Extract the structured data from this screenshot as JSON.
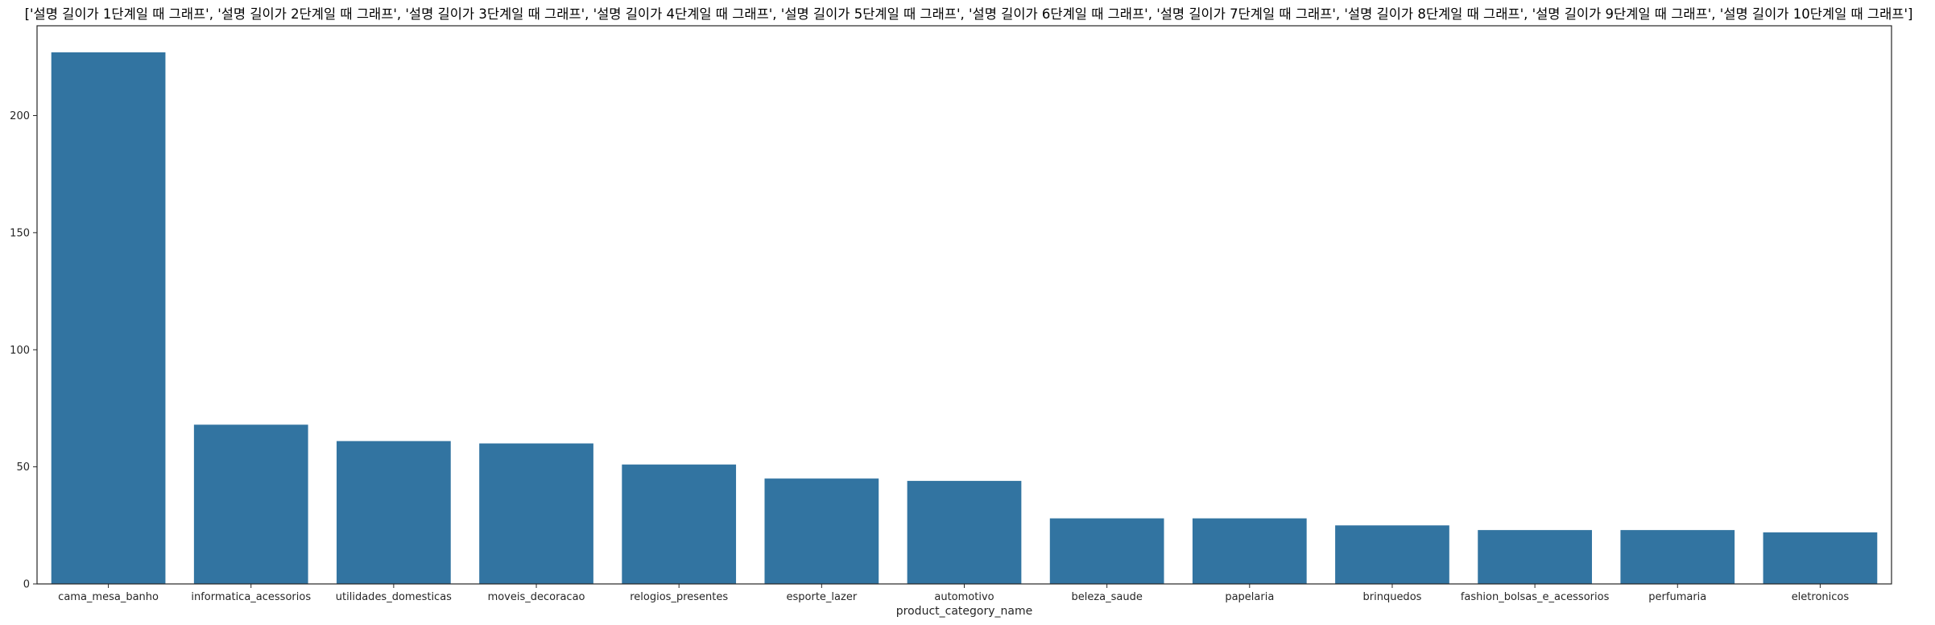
{
  "chart_data": {
    "type": "bar",
    "title": "['설명 길이가 1단계일 때 그래프', '설명 길이가 2단계일 때 그래프', '설명 길이가 3단계일 때 그래프', '설명 길이가 4단계일 때 그래프', '설명 길이가 5단계일 때 그래프', '설명 길이가 6단계일 때 그래프', '설명 길이가 7단계일 때 그래프', '설명 길이가 8단계일 때 그래프', '설명 길이가 9단계일 때 그래프', '설명 길이가 10단계일 때 그래프']",
    "xlabel": "product_category_name",
    "ylabel": "",
    "categories": [
      "cama_mesa_banho",
      "informatica_acessorios",
      "utilidades_domesticas",
      "moveis_decoracao",
      "relogios_presentes",
      "esporte_lazer",
      "automotivo",
      "beleza_saude",
      "papelaria",
      "brinquedos",
      "fashion_bolsas_e_acessorios",
      "perfumaria",
      "eletronicos"
    ],
    "values": [
      227,
      68,
      61,
      60,
      51,
      45,
      44,
      28,
      28,
      25,
      23,
      23,
      22
    ],
    "ylim": [
      0,
      238.35
    ],
    "yticks": [
      0,
      50,
      100,
      150,
      200
    ],
    "bar_color": "#3274a1",
    "grid": false
  }
}
